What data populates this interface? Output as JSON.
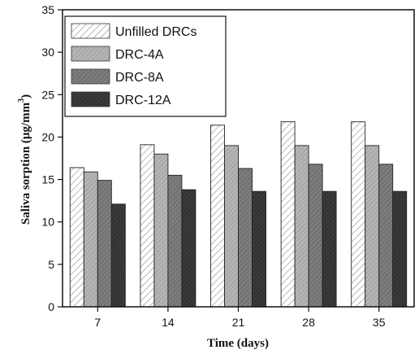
{
  "chart_data": {
    "type": "bar",
    "xlabel": "Time (days)",
    "ylabel": "Saliva sorption (μg/mm",
    "ylabel_superscript": "3",
    "ylabel_close": ")",
    "categories": [
      "7",
      "14",
      "21",
      "28",
      "35"
    ],
    "ylim": [
      0,
      35
    ],
    "yticks": [
      0,
      5,
      10,
      15,
      20,
      25,
      30,
      35
    ],
    "grid": false,
    "legend_position": "top-left",
    "series": [
      {
        "name": "Unfilled DRCs",
        "values": [
          16.4,
          19.1,
          21.4,
          21.8,
          21.8
        ],
        "color": "#ffffff",
        "hatch": "hatch-light"
      },
      {
        "name": "DRC-4A",
        "values": [
          15.9,
          18.0,
          19.0,
          19.0,
          19.0
        ],
        "color": "#b5b5b5",
        "hatch": "hatch-mid"
      },
      {
        "name": "DRC-8A",
        "values": [
          14.9,
          15.5,
          16.3,
          16.8,
          16.8
        ],
        "color": "#7e7e7e",
        "hatch": "hatch-dark"
      },
      {
        "name": "DRC-12A",
        "values": [
          12.1,
          13.8,
          13.6,
          13.6,
          13.6
        ],
        "color": "#3a3a3a",
        "hatch": "hatch-black"
      }
    ]
  }
}
